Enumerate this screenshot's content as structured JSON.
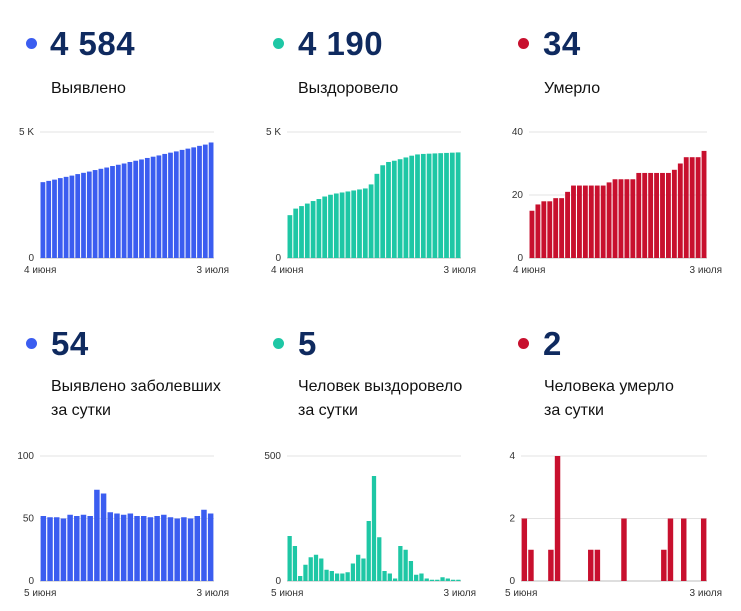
{
  "cards": [
    {
      "value": "4 584",
      "label_lines": [
        "Выявлено"
      ],
      "color": "#3b5df0"
    },
    {
      "value": "4 190",
      "label_lines": [
        "Выздоровело"
      ],
      "color": "#1ec7a5"
    },
    {
      "value": "34",
      "label_lines": [
        "Умерло"
      ],
      "color": "#c8102e"
    },
    {
      "value": "54",
      "label_lines": [
        "Выявлено заболевших",
        "за сутки"
      ],
      "color": "#3b5df0"
    },
    {
      "value": "5",
      "label_lines": [
        "Человек выздоровело",
        "за сутки"
      ],
      "color": "#1ec7a5"
    },
    {
      "value": "2",
      "label_lines": [
        "Человека умерло",
        "за сутки"
      ],
      "color": "#c8102e"
    }
  ],
  "chart_data": [
    {
      "type": "bar",
      "ylim": [
        0,
        5000
      ],
      "y_ticks": [
        {
          "value": 0,
          "label": "0"
        },
        {
          "value": 5000,
          "label": "5 K"
        }
      ],
      "x_labels": [
        "4 июня",
        "3 июля"
      ],
      "color": "#3b5df0",
      "values": [
        3010,
        3060,
        3110,
        3170,
        3220,
        3270,
        3330,
        3380,
        3430,
        3490,
        3540,
        3590,
        3650,
        3700,
        3750,
        3810,
        3860,
        3910,
        3970,
        4020,
        4070,
        4130,
        4180,
        4230,
        4290,
        4340,
        4390,
        4450,
        4500,
        4584
      ]
    },
    {
      "type": "bar",
      "ylim": [
        0,
        5000
      ],
      "y_ticks": [
        {
          "value": 0,
          "label": "0"
        },
        {
          "value": 5000,
          "label": "5 K"
        }
      ],
      "x_labels": [
        "4 июня",
        "3 июля"
      ],
      "color": "#1ec7a5",
      "values": [
        1700,
        1960,
        2060,
        2160,
        2260,
        2340,
        2440,
        2510,
        2560,
        2600,
        2640,
        2680,
        2720,
        2760,
        2920,
        3340,
        3680,
        3810,
        3860,
        3920,
        3990,
        4060,
        4110,
        4130,
        4140,
        4150,
        4160,
        4170,
        4180,
        4190
      ]
    },
    {
      "type": "bar",
      "ylim": [
        0,
        40
      ],
      "y_ticks": [
        {
          "value": 0,
          "label": "0"
        },
        {
          "value": 20,
          "label": "20"
        },
        {
          "value": 40,
          "label": "40"
        }
      ],
      "x_labels": [
        "4 июня",
        "3 июля"
      ],
      "color": "#c8102e",
      "values": [
        15,
        17,
        18,
        18,
        19,
        19,
        21,
        23,
        23,
        23,
        23,
        23,
        23,
        24,
        25,
        25,
        25,
        25,
        27,
        27,
        27,
        27,
        27,
        27,
        28,
        30,
        32,
        32,
        32,
        34
      ]
    },
    {
      "type": "bar",
      "ylim": [
        0,
        100
      ],
      "y_ticks": [
        {
          "value": 0,
          "label": "0"
        },
        {
          "value": 50,
          "label": "50"
        },
        {
          "value": 100,
          "label": "100"
        }
      ],
      "x_labels": [
        "5 июня",
        "3 июля"
      ],
      "color": "#3b5df0",
      "values": [
        52,
        51,
        51,
        50,
        53,
        52,
        53,
        52,
        73,
        70,
        55,
        54,
        53,
        54,
        52,
        52,
        51,
        52,
        53,
        51,
        50,
        51,
        50,
        52,
        57,
        54
      ]
    },
    {
      "type": "bar",
      "ylim": [
        0,
        500
      ],
      "y_ticks": [
        {
          "value": 0,
          "label": "0"
        },
        {
          "value": 500,
          "label": "500"
        }
      ],
      "x_labels": [
        "5 июня",
        "3 июля"
      ],
      "color": "#1ec7a5",
      "values": [
        180,
        140,
        20,
        65,
        95,
        105,
        90,
        45,
        40,
        30,
        30,
        35,
        70,
        105,
        90,
        240,
        420,
        175,
        40,
        30,
        10,
        140,
        125,
        80,
        25,
        30,
        10,
        5,
        5,
        15,
        10,
        5,
        5
      ]
    },
    {
      "type": "bar",
      "ylim": [
        0,
        4
      ],
      "y_ticks": [
        {
          "value": 0,
          "label": "0"
        },
        {
          "value": 2,
          "label": "2"
        },
        {
          "value": 4,
          "label": "4"
        }
      ],
      "x_labels": [
        "5 июня",
        "3 июля"
      ],
      "color": "#c8102e",
      "values": [
        2,
        1,
        0,
        0,
        1,
        4,
        0,
        0,
        0,
        0,
        1,
        1,
        0,
        0,
        0,
        2,
        0,
        0,
        0,
        0,
        0,
        1,
        2,
        0,
        2,
        0,
        0,
        2
      ]
    }
  ]
}
